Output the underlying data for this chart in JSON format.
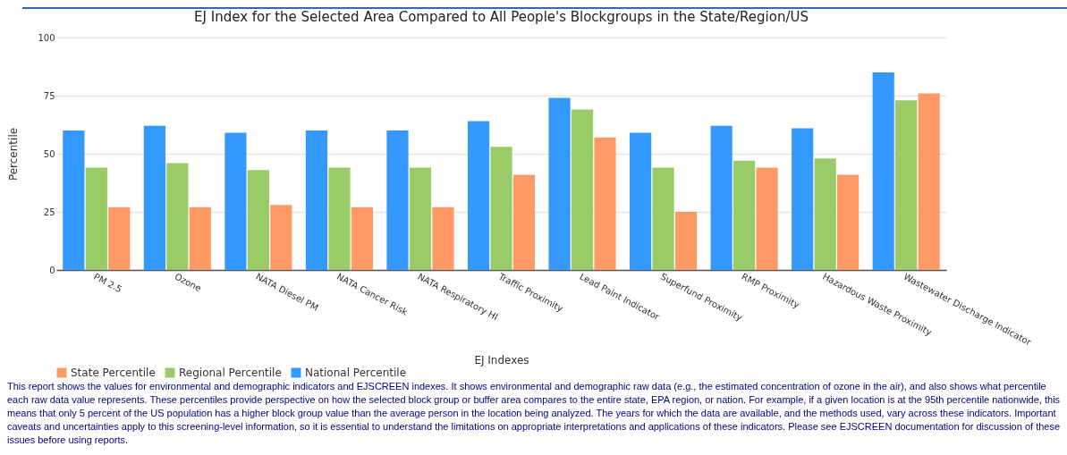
{
  "chart_data": {
    "type": "bar",
    "title": "EJ Index for the Selected Area Compared to All People's Blockgroups in the State/Region/US",
    "xlabel": "EJ Indexes",
    "ylabel": "Percentile",
    "categories": [
      "PM 2.5",
      "Ozone",
      "NATA Diesel PM",
      "NATA Cancer Risk",
      "NATA Respiratory HI",
      "Traffic Proximity",
      "Lead Paint Indicator",
      "Superfund Proximity",
      "RMP Proximity",
      "Hazardous Waste Proximity",
      "Wastewater Discharge Indicator"
    ],
    "series": [
      {
        "name": "National Percentile",
        "color": "#3399ff",
        "values": [
          60,
          62,
          59,
          60,
          60,
          64,
          74,
          59,
          62,
          61,
          85
        ]
      },
      {
        "name": "Regional Percentile",
        "color": "#99cc66",
        "values": [
          44,
          46,
          43,
          44,
          44,
          53,
          69,
          44,
          47,
          48,
          73
        ]
      },
      {
        "name": "State Percentile",
        "color": "#ff9966",
        "values": [
          27,
          27,
          28,
          27,
          27,
          41,
          57,
          25,
          44,
          41,
          76
        ]
      }
    ],
    "ylim": [
      0,
      100
    ],
    "yticks": [
      0,
      25,
      50,
      75,
      100
    ],
    "grid": "y",
    "legend": "bottom",
    "annotations": [
      "This report shows the values for environmental and demographic indicators and EJSCREEN indexes. It shows environmental and demographic raw data (e.g., the estimated concentration of ozone in the air), and also shows what percentile each raw data value represents. These percentiles provide perspective on how the selected block group or buffer area compares to the entire state, EPA region, or nation. For example, if a given location is at the 95th percentile nationwide, this means that only 5 percent of the US population has a higher block group value than the average person in the location being analyzed. The years for which the data are available, and the methods used, vary across these indicators. Important caveats and uncertainties apply to this screening-level information, so it is essential to understand the limitations on appropriate interpretations and applications of these indicators. Please see EJSCREEN documentation for discussion of these issues before using reports."
    ]
  }
}
